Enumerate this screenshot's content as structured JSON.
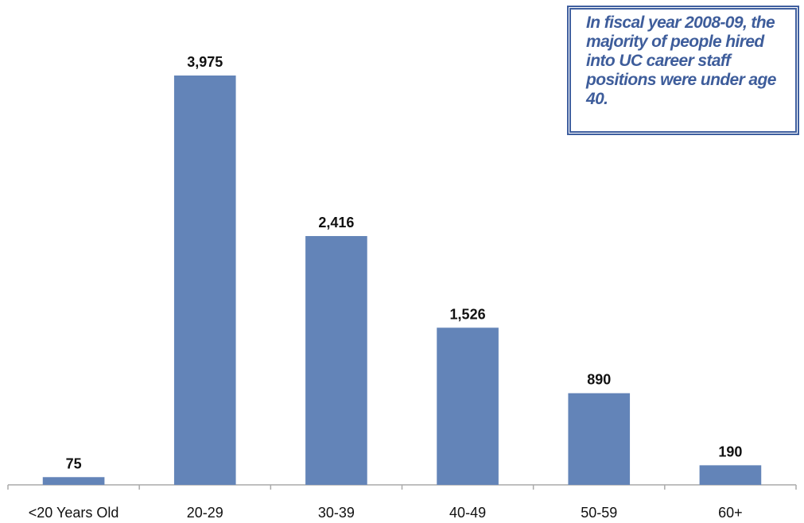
{
  "chart_data": {
    "type": "bar",
    "categories": [
      "<20 Years Old",
      "20-29",
      "30-39",
      "40-49",
      "50-59",
      "60+"
    ],
    "values": [
      75,
      3975,
      2416,
      1526,
      890,
      190
    ],
    "value_labels": [
      "75",
      "3,975",
      "2,416",
      "1,526",
      "890",
      "190"
    ],
    "title": "",
    "xlabel": "",
    "ylabel": "",
    "ylim": [
      0,
      3975
    ],
    "grid": false,
    "legend": "none",
    "bar_color": "#6384b8",
    "annotation": "In fiscal year 2008-09, the majority of people hired into UC career staff positions were under age 40."
  },
  "colors": {
    "callout_text": "#3e5d9b",
    "callout_border": "#3f5f9f",
    "axis": "#aaaaaa"
  }
}
